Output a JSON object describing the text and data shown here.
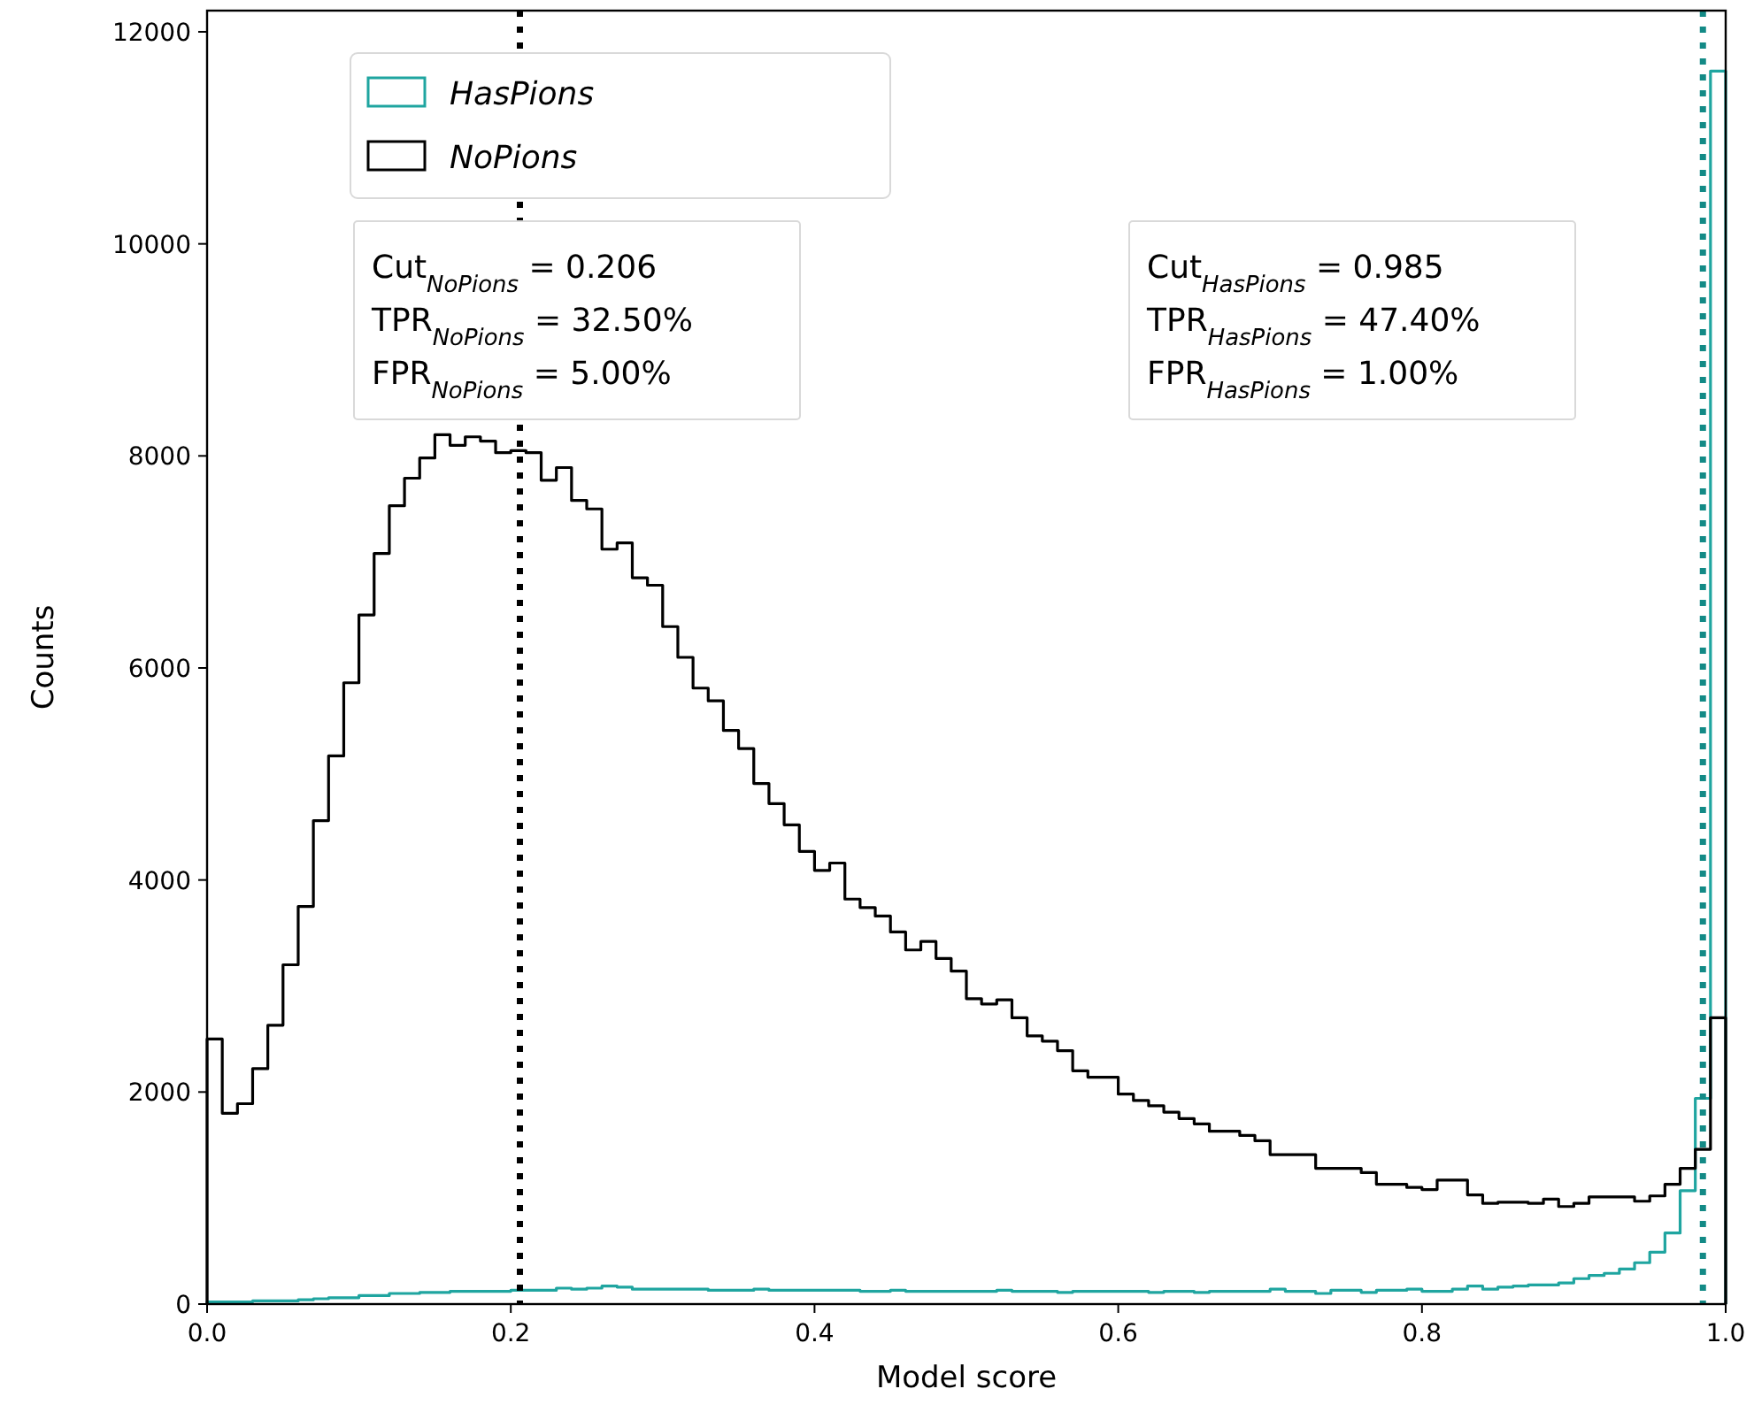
{
  "chart_data": {
    "type": "histogram",
    "xlabel": "Model score",
    "ylabel": "Counts",
    "bins": [
      0,
      0.01,
      0.02,
      0.03,
      0.04,
      0.05,
      0.06,
      0.07,
      0.08,
      0.09,
      0.1,
      0.11,
      0.12,
      0.13,
      0.14,
      0.15,
      0.16,
      0.17,
      0.18,
      0.19,
      0.2,
      0.21,
      0.22,
      0.23,
      0.24,
      0.25,
      0.26,
      0.27,
      0.28,
      0.29,
      0.3,
      0.31,
      0.32,
      0.33,
      0.34,
      0.35,
      0.36,
      0.37,
      0.38,
      0.39,
      0.4,
      0.41,
      0.42,
      0.43,
      0.44,
      0.45,
      0.46,
      0.47,
      0.48,
      0.49,
      0.5,
      0.51,
      0.52,
      0.53,
      0.54,
      0.55,
      0.56,
      0.57,
      0.58,
      0.59,
      0.6,
      0.61,
      0.62,
      0.63,
      0.64,
      0.65,
      0.66,
      0.67,
      0.68,
      0.69,
      0.7,
      0.71,
      0.72,
      0.73,
      0.74,
      0.75,
      0.76,
      0.77,
      0.78,
      0.79,
      0.8,
      0.81,
      0.82,
      0.83,
      0.84,
      0.85,
      0.86,
      0.87,
      0.88,
      0.89,
      0.9,
      0.91,
      0.92,
      0.93,
      0.94,
      0.95,
      0.96,
      0.97,
      0.98,
      0.99,
      1
    ],
    "series": [
      {
        "name": "HasPions",
        "color": "#1fa5a0",
        "values": [
          20,
          20,
          20,
          30,
          30,
          30,
          40,
          50,
          60,
          60,
          80,
          80,
          100,
          100,
          110,
          110,
          120,
          120,
          120,
          120,
          130,
          130,
          130,
          150,
          140,
          150,
          170,
          160,
          140,
          140,
          140,
          140,
          140,
          130,
          130,
          130,
          140,
          130,
          130,
          130,
          130,
          130,
          130,
          120,
          120,
          130,
          120,
          120,
          120,
          120,
          120,
          120,
          130,
          120,
          120,
          120,
          110,
          120,
          120,
          120,
          120,
          120,
          110,
          120,
          120,
          110,
          120,
          120,
          120,
          120,
          140,
          120,
          120,
          100,
          130,
          130,
          110,
          130,
          130,
          140,
          120,
          120,
          140,
          170,
          140,
          160,
          170,
          180,
          180,
          200,
          240,
          270,
          290,
          330,
          390,
          490,
          670,
          1070,
          1940,
          11630
        ]
      },
      {
        "name": "NoPions",
        "color": "#000000",
        "values": [
          2500,
          1800,
          1890,
          2220,
          2630,
          3200,
          3750,
          4560,
          5170,
          5860,
          6500,
          7080,
          7530,
          7790,
          7980,
          8200,
          8100,
          8180,
          8140,
          8030,
          8050,
          8030,
          7770,
          7890,
          7580,
          7500,
          7120,
          7180,
          6850,
          6780,
          6390,
          6100,
          5810,
          5690,
          5410,
          5240,
          4910,
          4720,
          4520,
          4270,
          4090,
          4160,
          3820,
          3740,
          3660,
          3510,
          3340,
          3420,
          3260,
          3140,
          2880,
          2830,
          2870,
          2700,
          2530,
          2480,
          2390,
          2200,
          2140,
          2140,
          1980,
          1920,
          1870,
          1810,
          1750,
          1700,
          1630,
          1630,
          1590,
          1540,
          1410,
          1410,
          1410,
          1280,
          1280,
          1280,
          1240,
          1130,
          1130,
          1100,
          1080,
          1170,
          1170,
          1030,
          950,
          960,
          960,
          950,
          990,
          920,
          950,
          1010,
          1010,
          1010,
          970,
          1020,
          1130,
          1280,
          1460,
          2700
        ]
      }
    ],
    "xlim": [
      0,
      1
    ],
    "xticks": [
      {
        "value": 0,
        "label": "0.0"
      },
      {
        "value": 0.2,
        "label": "0.2"
      },
      {
        "value": 0.4,
        "label": "0.4"
      },
      {
        "value": 0.6,
        "label": "0.6"
      },
      {
        "value": 0.8,
        "label": "0.8"
      },
      {
        "value": 1,
        "label": "1.0"
      }
    ],
    "ylim": [
      0,
      12200
    ],
    "yticks": [
      0,
      2000,
      4000,
      6000,
      8000,
      10000,
      12000
    ],
    "ref_lines": [
      {
        "axis": "x",
        "value": 0.206,
        "color": "#000000",
        "line_style": "dotted"
      },
      {
        "axis": "x",
        "value": 0.985,
        "color": "#138a86",
        "line_style": "dotted"
      }
    ],
    "annotations": [
      "Cut$_{NoPions}$ = 0.206\nTPR$_{NoPions}$ = 32.50%\nFPR$_{NoPions}$ = 5.00%",
      "Cut$_{HasPions}$ = 0.985\nTPR$_{HasPions}$ = 47.40%\nFPR$_{HasPions}$ = 1.00%"
    ],
    "legend": "top left"
  }
}
